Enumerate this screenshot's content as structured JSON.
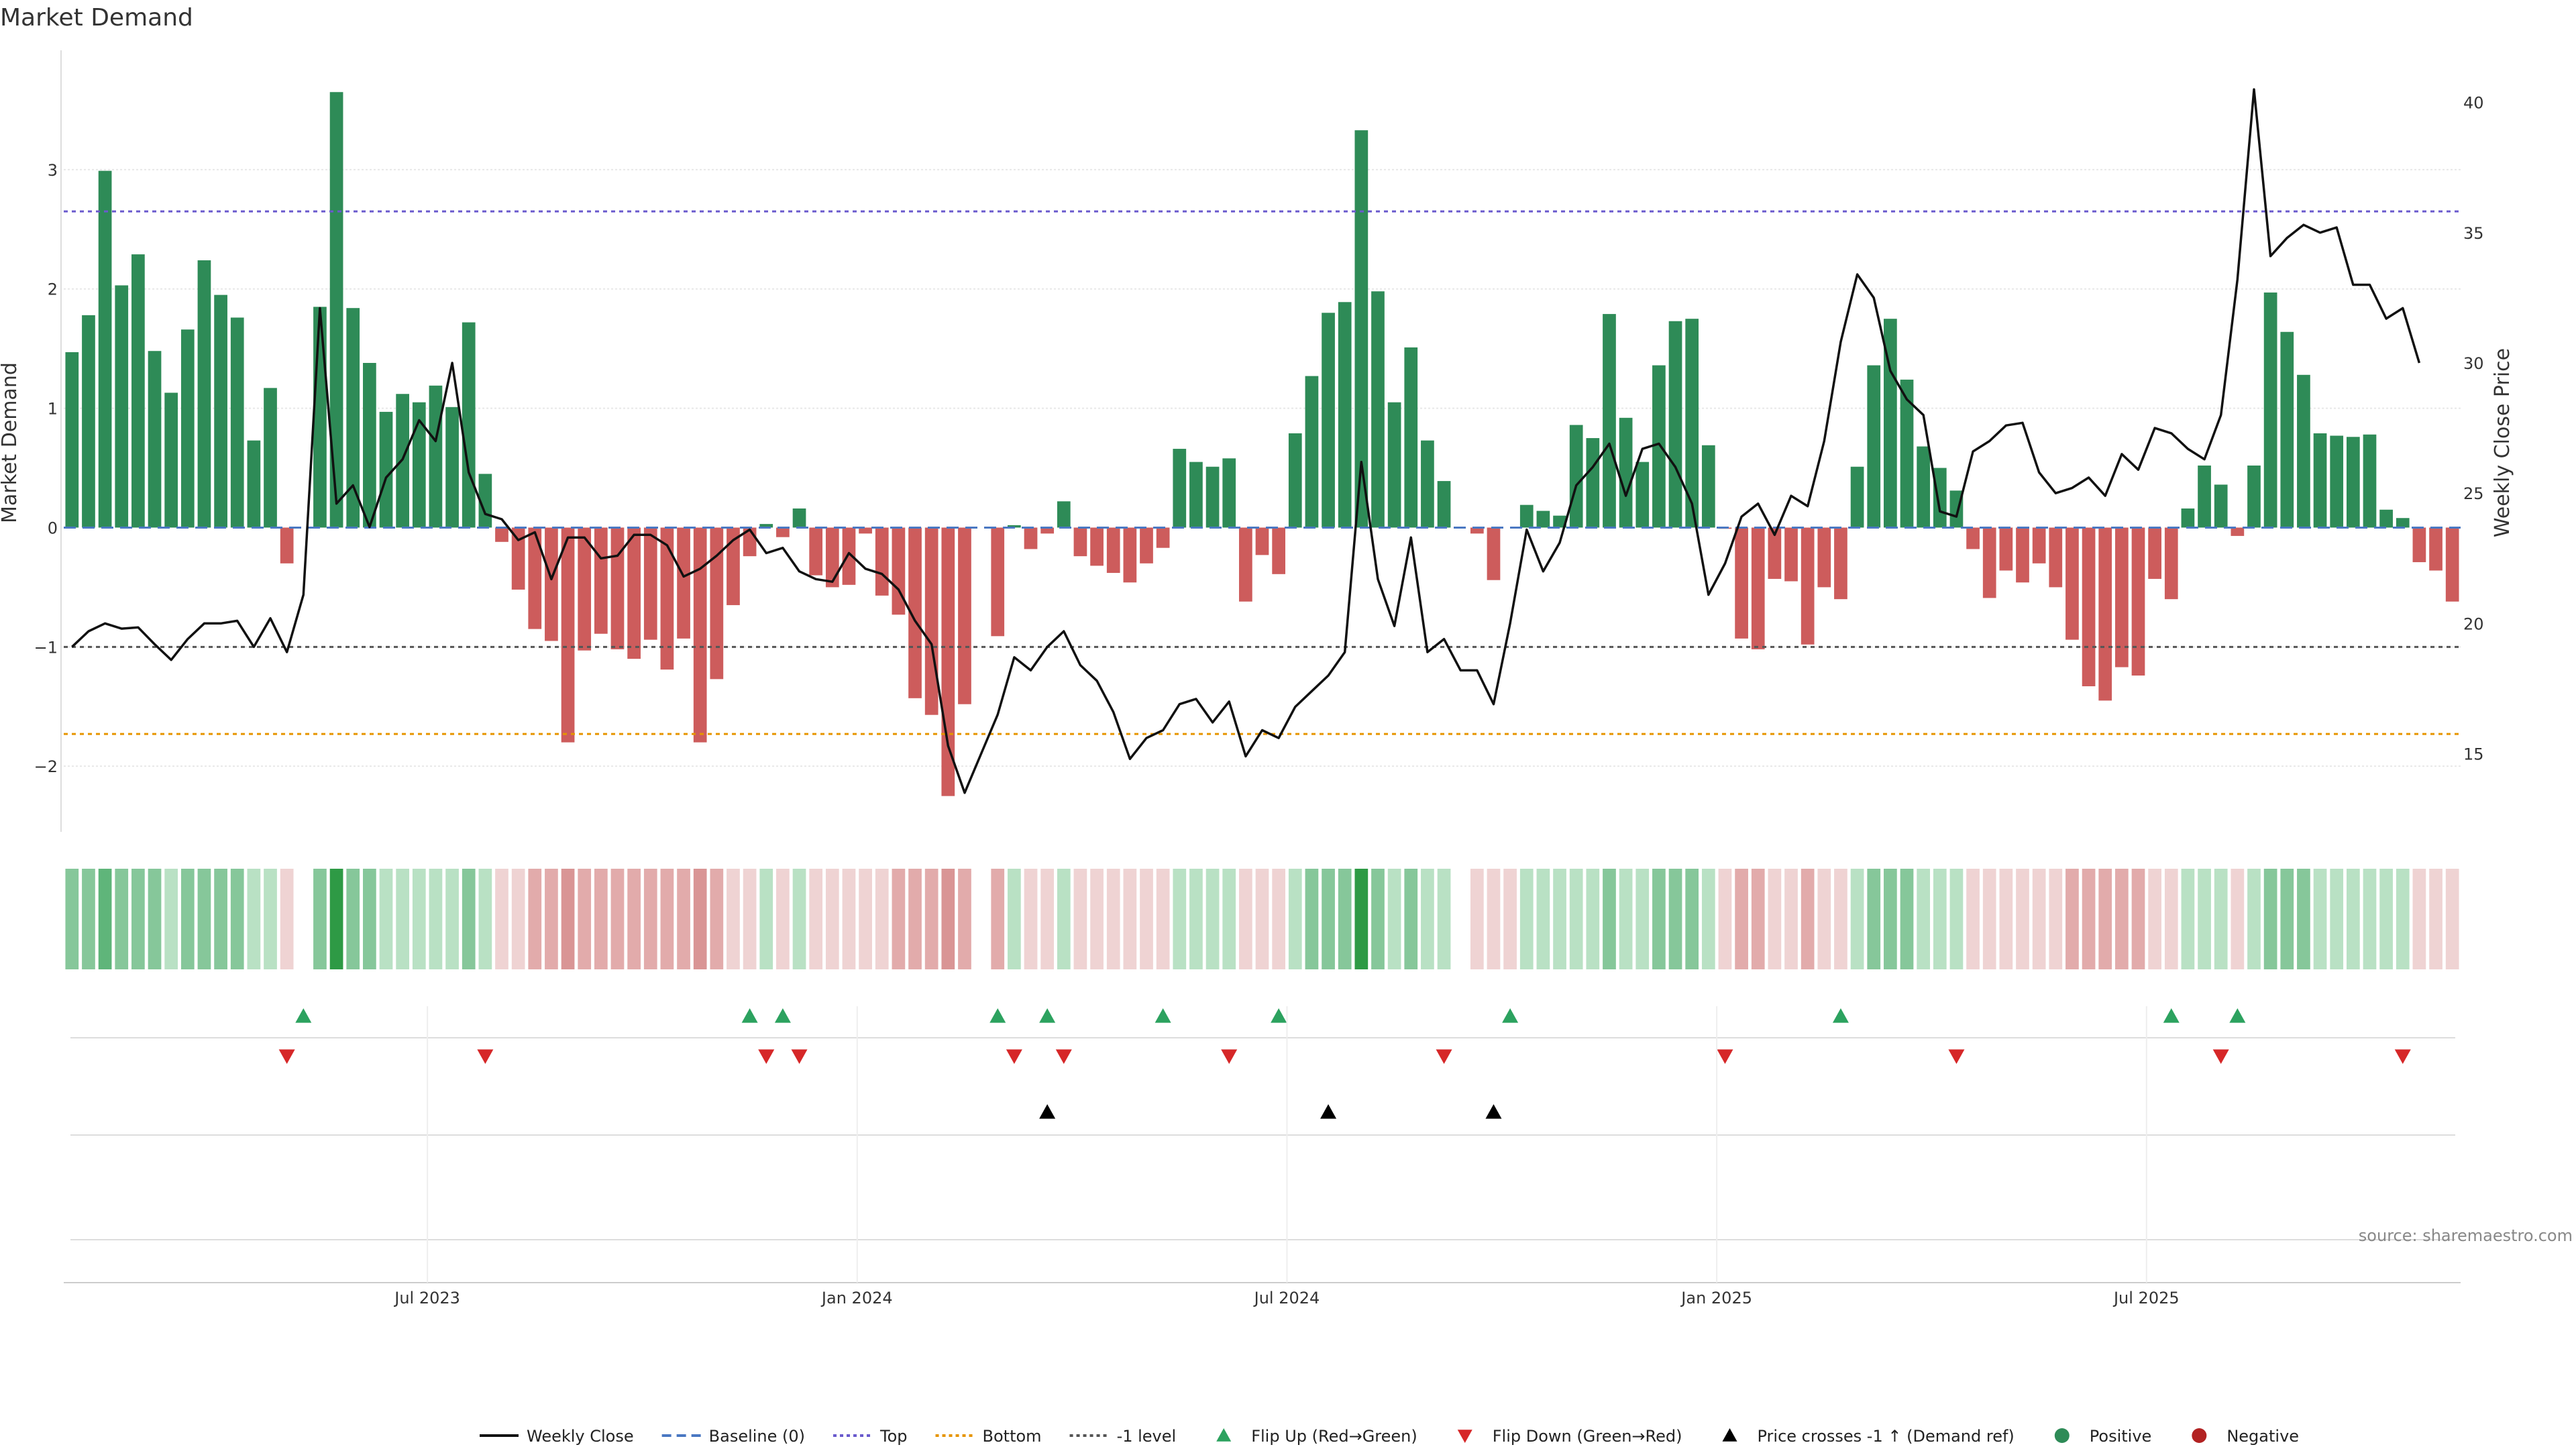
{
  "chart_data": {
    "type": "bar",
    "title": "Market Demand",
    "ylabel_left": "Market Demand",
    "ylabel_right": "Weekly Close Price",
    "ylim_left": [
      -2.55,
      4.0
    ],
    "ylim_right": [
      12.0,
      42.0
    ],
    "left_ticks": [
      -2,
      -1,
      0,
      1,
      2,
      3
    ],
    "right_ticks": [
      15,
      20,
      25,
      30,
      35,
      40
    ],
    "date_labels": [
      {
        "label": "Jul 2023",
        "week": 22
      },
      {
        "label": "Jan 2024",
        "week": 48
      },
      {
        "label": "Jul 2024",
        "week": 74
      },
      {
        "label": "Jan 2025",
        "week": 100
      },
      {
        "label": "Jul 2025",
        "week": 126
      }
    ],
    "reference_lines": {
      "baseline": 0,
      "top": 2.65,
      "bottom": -1.73,
      "minus_one_level": -1
    },
    "demand": [
      1.47,
      1.78,
      2.99,
      2.03,
      2.29,
      1.48,
      1.13,
      1.66,
      2.24,
      1.95,
      1.76,
      0.73,
      1.17,
      -0.3,
      0,
      1.85,
      3.65,
      1.84,
      1.38,
      0.97,
      1.12,
      1.05,
      1.19,
      1.01,
      1.72,
      0.45,
      -0.12,
      -0.52,
      -0.85,
      -0.95,
      -1.8,
      -1.03,
      -0.89,
      -1.02,
      -1.1,
      -0.94,
      -1.19,
      -0.93,
      -1.8,
      -1.27,
      -0.65,
      -0.24,
      0.03,
      -0.08,
      0.16,
      -0.4,
      -0.5,
      -0.48,
      -0.05,
      -0.57,
      -0.73,
      -1.43,
      -1.57,
      -2.25,
      -1.48,
      0,
      -0.91,
      0.02,
      -0.18,
      -0.05,
      0.22,
      -0.24,
      -0.32,
      -0.38,
      -0.46,
      -0.3,
      -0.17,
      0.66,
      0.55,
      0.51,
      0.58,
      -0.62,
      -0.23,
      -0.39,
      0.79,
      1.27,
      1.8,
      1.89,
      3.33,
      1.98,
      1.05,
      1.51,
      0.73,
      0.39,
      0,
      -0.05,
      -0.44,
      0,
      0.19,
      0.14,
      0.1,
      0.86,
      0.75,
      1.79,
      0.92,
      0.55,
      1.36,
      1.73,
      1.75,
      0.69,
      -0.01,
      -0.93,
      -1.02,
      -0.43,
      -0.45,
      -0.98,
      -0.5,
      -0.6,
      0.51,
      1.36,
      1.75,
      1.24,
      0.68,
      0.5,
      0.31,
      -0.18,
      -0.59,
      -0.36,
      -0.46,
      -0.3,
      -0.5,
      -0.94,
      -1.33,
      -1.45,
      -1.17,
      -1.24,
      -0.43,
      -0.6,
      0.16,
      0.52,
      0.36,
      -0.07,
      0.52,
      1.97,
      1.64,
      1.28,
      0.79,
      0.77,
      0.76,
      0.78,
      0.15,
      0.08,
      -0.29,
      -0.36,
      -0.62
    ],
    "close": [
      19.1,
      19.7,
      20.0,
      19.8,
      19.85,
      19.2,
      18.6,
      19.4,
      20.0,
      20.0,
      20.1,
      19.1,
      20.2,
      18.9,
      21.1,
      32.1,
      24.6,
      25.3,
      23.7,
      25.6,
      26.3,
      27.8,
      27.0,
      30.0,
      25.8,
      24.2,
      24.0,
      23.2,
      23.5,
      21.7,
      23.3,
      23.3,
      22.5,
      22.6,
      23.4,
      23.4,
      23.0,
      21.8,
      22.1,
      22.6,
      23.2,
      23.6,
      22.7,
      22.9,
      22.0,
      21.7,
      21.6,
      22.7,
      22.1,
      21.9,
      21.3,
      20.1,
      19.2,
      15.3,
      13.5,
      15.0,
      16.5,
      18.7,
      18.2,
      19.1,
      19.7,
      18.4,
      17.8,
      16.6,
      14.8,
      15.6,
      15.9,
      16.9,
      17.1,
      16.2,
      17.0,
      14.9,
      15.9,
      15.6,
      16.8,
      17.4,
      18.0,
      18.9,
      26.2,
      21.7,
      19.9,
      23.3,
      18.9,
      19.4,
      18.2,
      18.2,
      16.9,
      20.0,
      23.6,
      22.0,
      23.1,
      25.3,
      26.0,
      26.9,
      24.9,
      26.7,
      26.9,
      26.0,
      24.6,
      21.1,
      22.3,
      24.1,
      24.6,
      23.4,
      24.9,
      24.5,
      27.0,
      30.8,
      33.4,
      32.5,
      29.7,
      28.6,
      28.0,
      24.3,
      24.1,
      26.6,
      27.0,
      27.6,
      27.7,
      25.8,
      25.0,
      25.2,
      25.6,
      24.9,
      26.5,
      25.9,
      27.5,
      27.3,
      26.7,
      26.3,
      28.0,
      33.2,
      40.5,
      34.1,
      34.8,
      35.3,
      35.0,
      35.2,
      33.0,
      33.0,
      31.7,
      32.1,
      30.0
    ],
    "weekly_strip": [
      2,
      2,
      3,
      2,
      2,
      2,
      1,
      2,
      2,
      2,
      2,
      1,
      1,
      -1,
      0,
      2,
      4,
      2,
      2,
      1,
      1,
      1,
      1,
      1,
      2,
      1,
      -1,
      -1,
      -2,
      -2,
      -3,
      -2,
      -2,
      -2,
      -2,
      -2,
      -2,
      -2,
      -3,
      -2,
      -1,
      -1,
      1,
      -1,
      1,
      -1,
      -1,
      -1,
      -1,
      -1,
      -2,
      -2,
      -2,
      -3,
      -2,
      0,
      -2,
      1,
      -1,
      -1,
      1,
      -1,
      -1,
      -1,
      -1,
      -1,
      -1,
      1,
      1,
      1,
      1,
      -1,
      -1,
      -1,
      1,
      2,
      2,
      2,
      4,
      2,
      1,
      2,
      1,
      1,
      0,
      -1,
      -1,
      -1,
      1,
      1,
      1,
      1,
      1,
      2,
      1,
      1,
      2,
      2,
      2,
      1,
      -1,
      -2,
      -2,
      -1,
      -1,
      -2,
      -1,
      -1,
      1,
      2,
      2,
      2,
      1,
      1,
      1,
      -1,
      -1,
      -1,
      -1,
      -1,
      -1,
      -2,
      -2,
      -2,
      -2,
      -2,
      -1,
      -1,
      1,
      1,
      1,
      -1,
      1,
      2,
      2,
      2,
      1,
      1,
      1,
      1,
      1,
      1,
      -1,
      -1,
      -1
    ],
    "flip_up_weeks": [
      14,
      41,
      43,
      56,
      59,
      66,
      73,
      87,
      107,
      127,
      131
    ],
    "flip_down_weeks": [
      13,
      25,
      42,
      44,
      57,
      60,
      70,
      83,
      100,
      114,
      130,
      141
    ],
    "price_cross_weeks": [
      59,
      76,
      86
    ]
  },
  "source_text": "source: sharemaestro.com",
  "legend": [
    {
      "label": "Weekly Close",
      "kind": "line-solid",
      "color": "#111111"
    },
    {
      "label": "Baseline (0)",
      "kind": "line-dashed",
      "color": "#4a78c2"
    },
    {
      "label": "Top",
      "kind": "line-dotted",
      "color": "#6a5acd"
    },
    {
      "label": "Bottom",
      "kind": "line-dotted",
      "color": "#e69500"
    },
    {
      "label": "-1 level",
      "kind": "line-dotted",
      "color": "#555555"
    },
    {
      "label": "Flip Up (Red→Green)",
      "kind": "triangle-up",
      "color": "#2ca25f"
    },
    {
      "label": "Flip Down (Green→Red)",
      "kind": "triangle-down",
      "color": "#d62728"
    },
    {
      "label": "Price crosses -1 ↑ (Demand ref)",
      "kind": "triangle-up",
      "color": "#000000"
    },
    {
      "label": "Positive",
      "kind": "dot",
      "color": "#2e8b57"
    },
    {
      "label": "Negative",
      "kind": "dot",
      "color": "#b22222"
    }
  ],
  "colors": {
    "positive_bar": "#2e8b57",
    "negative_bar": "#cd5c5c",
    "close_line": "#111111",
    "flip_up": "#2ca25f",
    "flip_down": "#d62728",
    "price_cross": "#000000"
  }
}
